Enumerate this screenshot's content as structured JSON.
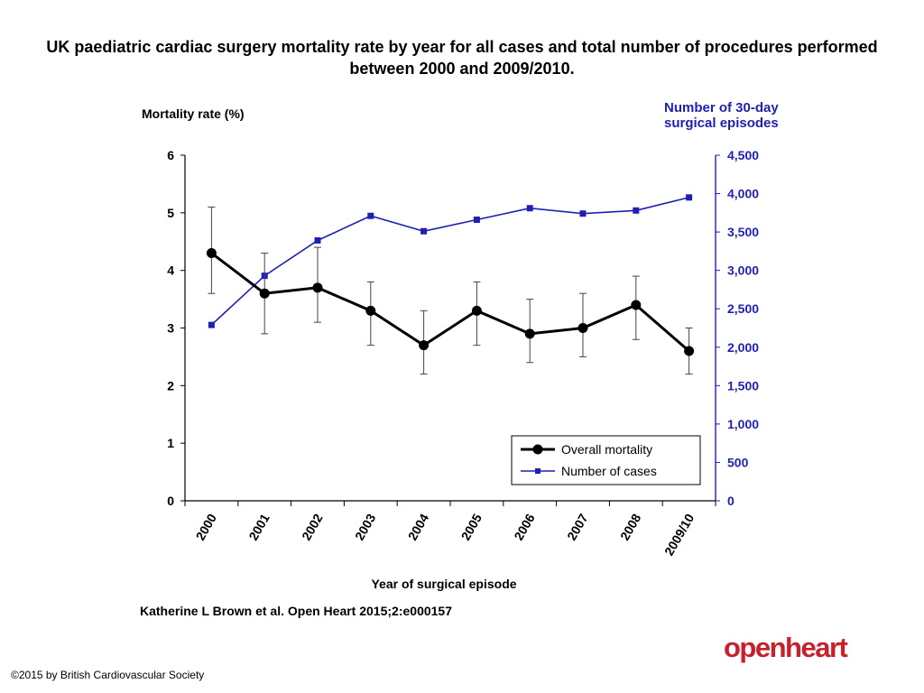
{
  "title": "UK paediatric cardiac surgery mortality rate by year for all cases and total number of procedures performed between 2000 and 2009/2010.",
  "citation": "Katherine L Brown et al. Open Heart 2015;2:e000157",
  "copyright": "©2015 by British Cardiovascular Society",
  "logo_text": "openheart",
  "colors": {
    "mortality": "#000000",
    "cases": "#1f1fb4",
    "brand": "#c8202a"
  },
  "chart_data": {
    "type": "line",
    "categories": [
      "2000",
      "2001",
      "2002",
      "2003",
      "2004",
      "2005",
      "2006",
      "2007",
      "2008",
      "2009/10"
    ],
    "xlabel": "Year of surgical episode",
    "y_left": {
      "label": "Mortality rate (%)",
      "ylim": [
        0,
        6
      ],
      "ticks": [
        "0",
        "1",
        "2",
        "3",
        "4",
        "5",
        "6"
      ]
    },
    "y_right": {
      "label_lines": [
        "Number of 30-day",
        "surgical episodes"
      ],
      "ylim": [
        0,
        4500
      ],
      "ticks": [
        "0",
        "500",
        "1,000",
        "1,500",
        "2,000",
        "2,500",
        "3,000",
        "3,500",
        "4,000",
        "4,500"
      ]
    },
    "series": [
      {
        "name": "Overall mortality",
        "axis": "left",
        "values": [
          4.3,
          3.6,
          3.7,
          3.3,
          2.7,
          3.3,
          2.9,
          3.0,
          3.4,
          2.6
        ],
        "error_low": [
          3.6,
          2.9,
          3.1,
          2.7,
          2.2,
          2.7,
          2.4,
          2.5,
          2.8,
          2.2
        ],
        "error_high": [
          5.1,
          4.3,
          4.4,
          3.8,
          3.3,
          3.8,
          3.5,
          3.6,
          3.9,
          3.0
        ]
      },
      {
        "name": "Number of cases",
        "axis": "right",
        "values": [
          2290,
          2930,
          3390,
          3710,
          3510,
          3660,
          3810,
          3740,
          3780,
          3950
        ]
      }
    ],
    "legend": "bottom-right",
    "grid": false
  }
}
